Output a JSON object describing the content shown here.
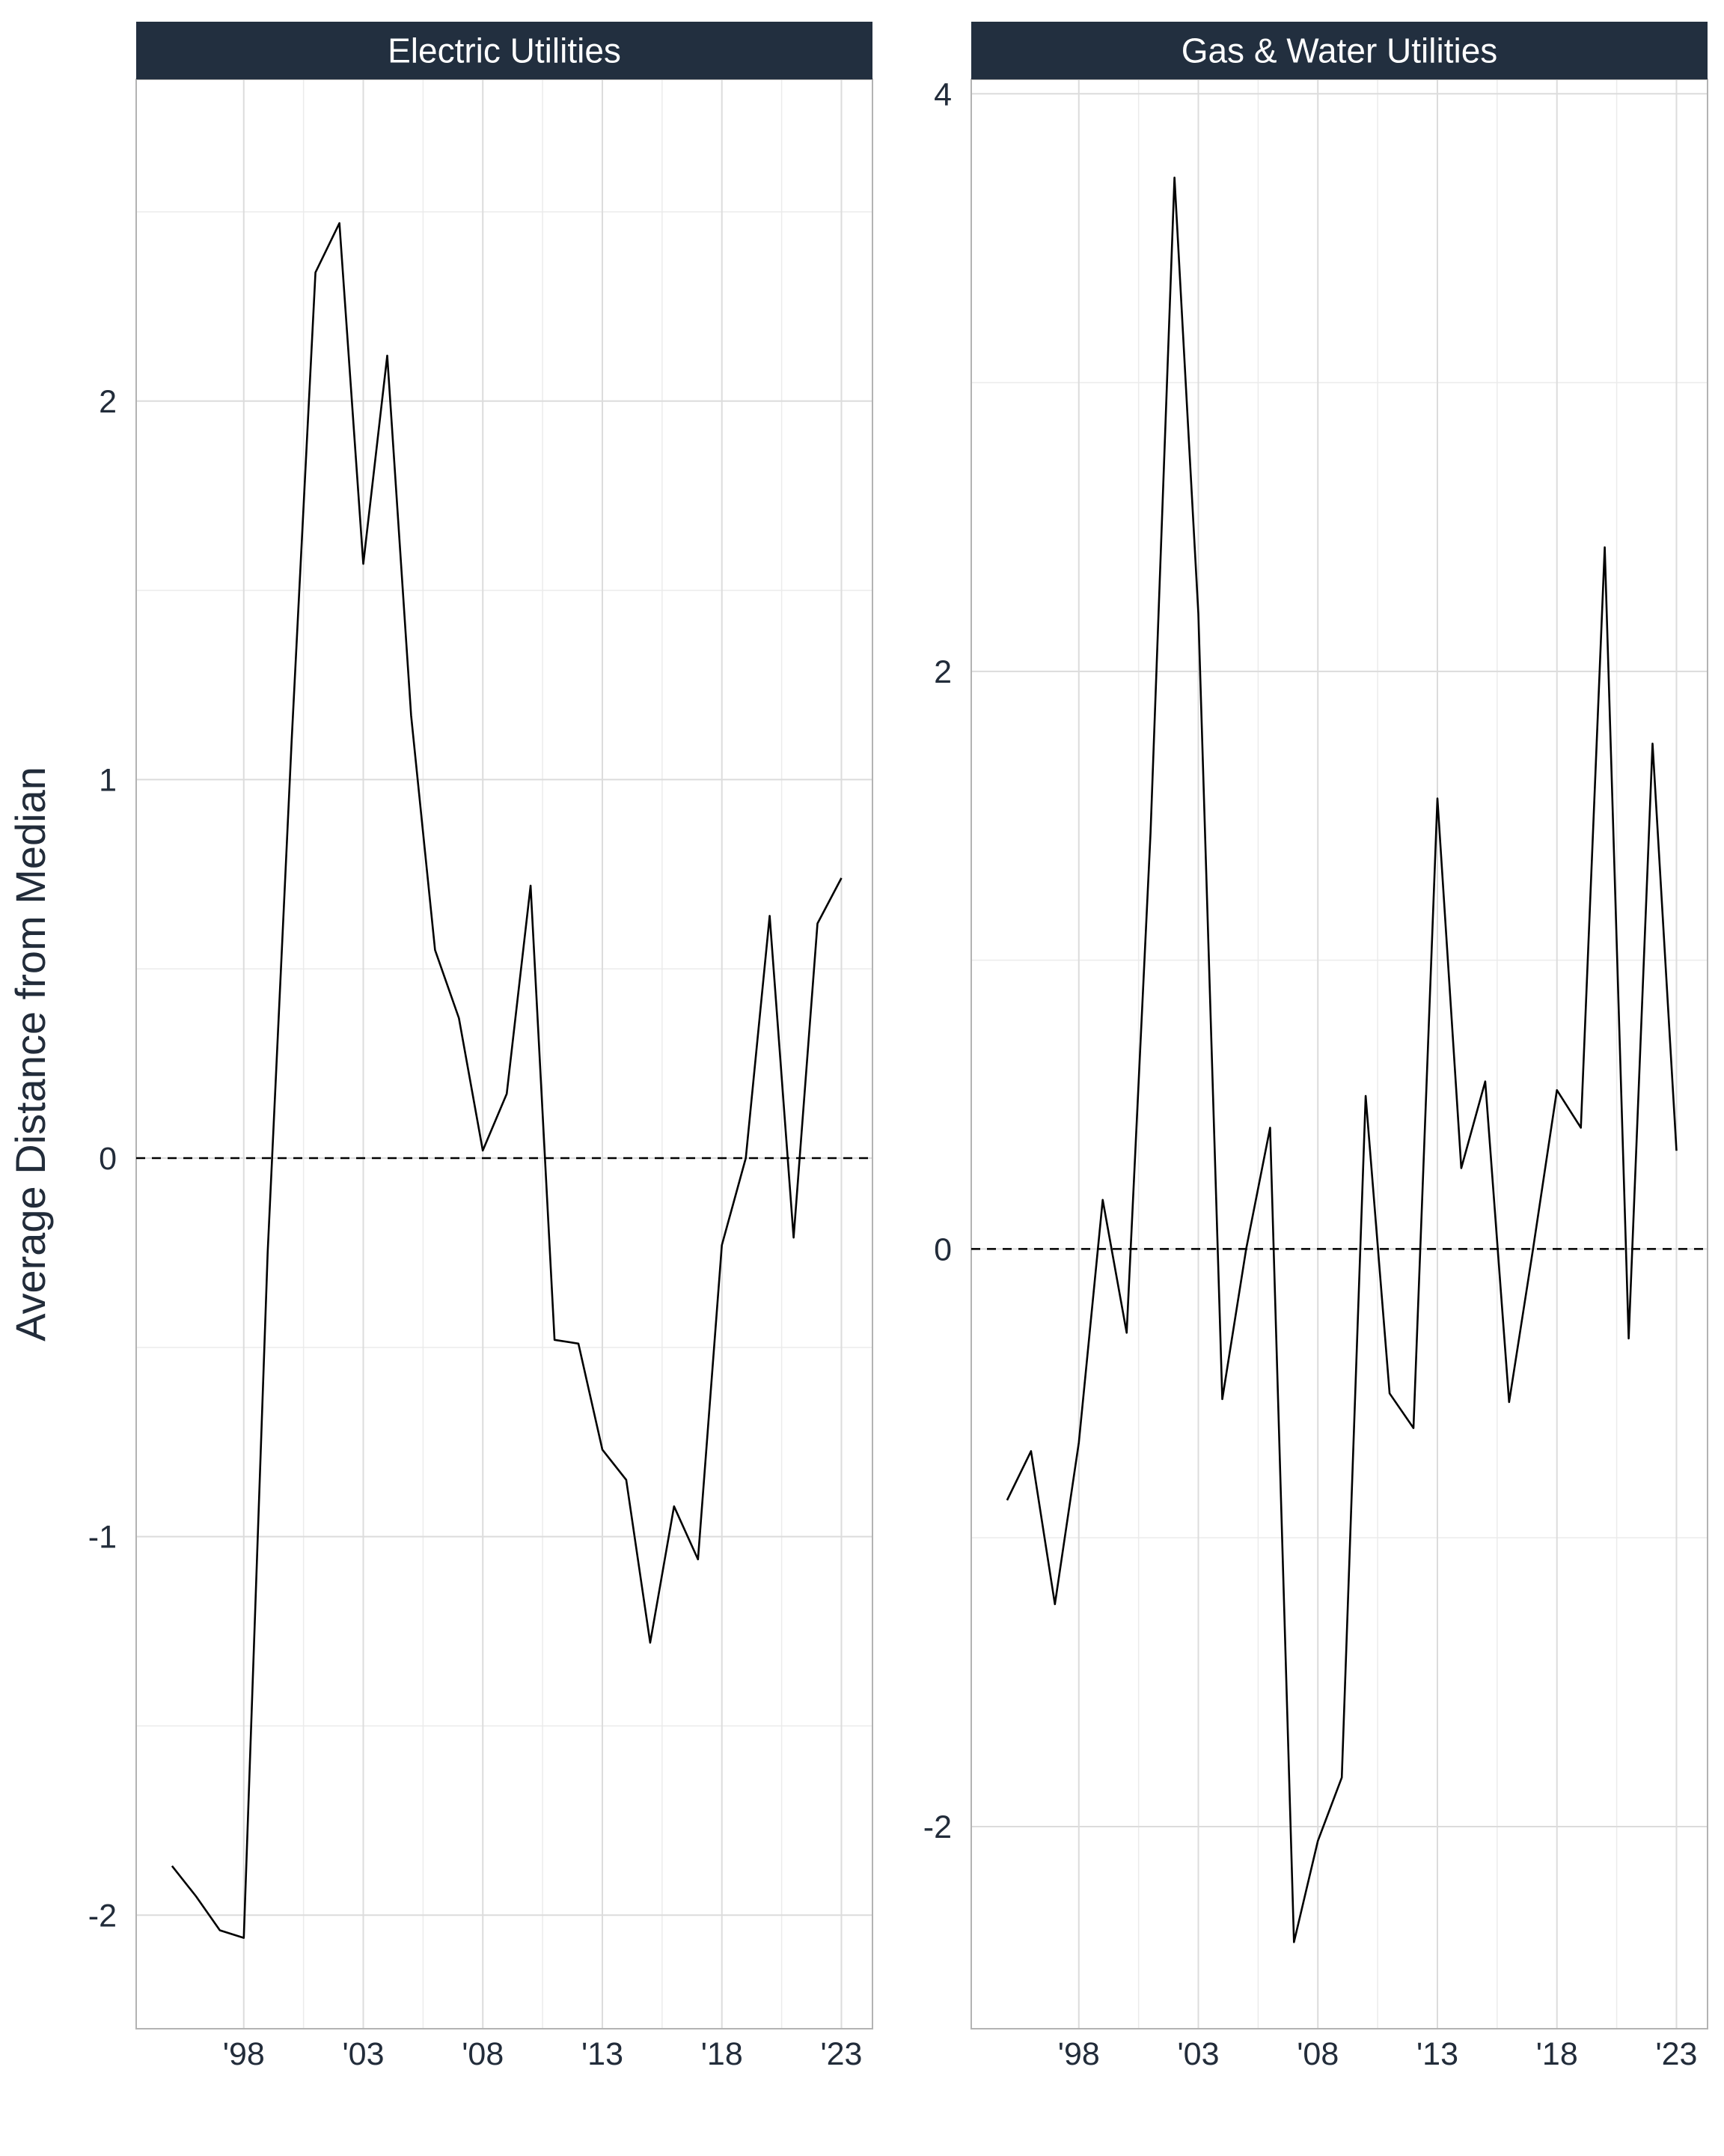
{
  "chart_data": {
    "type": "line",
    "ylabel": "Average Distance from Median",
    "xlabel": "",
    "x": [
      1995,
      1996,
      1997,
      1998,
      1999,
      2000,
      2001,
      2002,
      2003,
      2004,
      2005,
      2006,
      2007,
      2008,
      2009,
      2010,
      2011,
      2012,
      2013,
      2014,
      2015,
      2016,
      2017,
      2018,
      2019,
      2020,
      2021,
      2022,
      2023
    ],
    "x_ticks": [
      1998,
      2003,
      2008,
      2013,
      2018,
      2023
    ],
    "x_tick_labels": [
      "'98",
      "'03",
      "'08",
      "'13",
      "'18",
      "'23"
    ],
    "xlim": [
      1993.5,
      2024.3
    ],
    "reference_line": {
      "y": 0,
      "style": "dashed"
    },
    "grid": true,
    "panels": [
      {
        "strip": "Electric Utilities",
        "ylim": [
          -2.3,
          2.85
        ],
        "y_ticks": [
          -2,
          -1,
          0,
          1,
          2
        ],
        "y_tick_labels": [
          "-2",
          "-1",
          "0",
          "1",
          "2"
        ],
        "y_minor": [
          -1.5,
          -0.5,
          0.5,
          1.5,
          2.5
        ],
        "values": [
          -1.87,
          -1.95,
          -2.04,
          -2.06,
          -0.25,
          1.1,
          2.34,
          2.47,
          1.57,
          2.12,
          1.17,
          0.55,
          0.37,
          0.02,
          0.17,
          0.72,
          -0.48,
          -0.49,
          -0.77,
          -0.85,
          -1.28,
          -0.92,
          -1.06,
          -0.23,
          0.0,
          0.64,
          -0.21,
          0.62,
          0.74
        ]
      },
      {
        "strip": "Gas & Water Utilities",
        "ylim": [
          -2.7,
          4.05
        ],
        "y_ticks": [
          -2,
          0,
          2,
          4
        ],
        "y_tick_labels": [
          "-2",
          "0",
          "2",
          "4"
        ],
        "y_minor": [
          -1,
          1,
          3
        ],
        "values": [
          -0.87,
          -0.7,
          -1.23,
          -0.67,
          0.17,
          -0.29,
          1.44,
          3.71,
          2.2,
          -0.52,
          0.0,
          0.42,
          -2.4,
          -2.05,
          -1.83,
          0.53,
          -0.5,
          -0.62,
          1.56,
          0.28,
          0.58,
          -0.53,
          0.0,
          0.55,
          0.42,
          2.43,
          -0.31,
          1.75,
          0.34
        ]
      }
    ]
  },
  "colors": {
    "strip_background": "#222f3f",
    "strip_text": "#ffffff",
    "line": "#000000",
    "grid_major": "#dcdcdc",
    "grid_minor": "#ebebeb",
    "panel_border": "#b3b3b3",
    "text": "#222c3a"
  }
}
